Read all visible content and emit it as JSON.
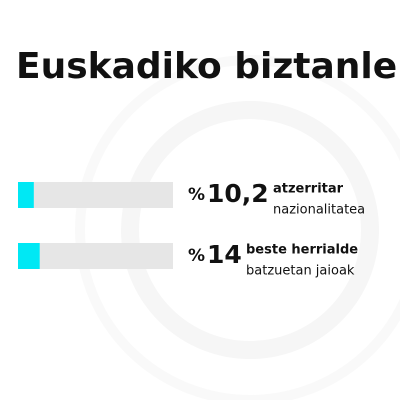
{
  "chart_data": {
    "type": "bar",
    "orientation": "horizontal",
    "title": "Euskadiko biztanleria",
    "unit": "%",
    "categories": [
      "atzerritar",
      "beste herrialde"
    ],
    "subcategories": [
      "nazionalitatea",
      "batzuetan jaioak"
    ],
    "values": [
      10.2,
      14
    ],
    "value_labels": [
      "10,2",
      "14"
    ],
    "xlim": [
      0,
      100
    ],
    "color": "#00e8f4",
    "track_color": "#e6e6e6"
  }
}
